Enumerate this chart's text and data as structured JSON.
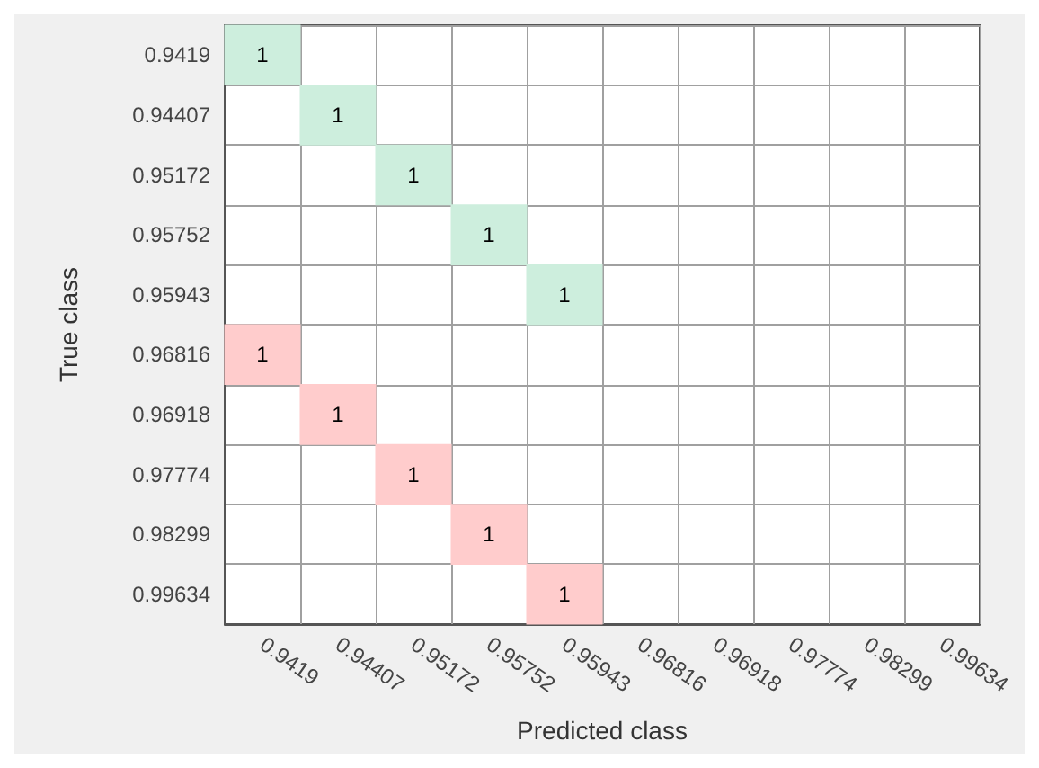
{
  "chart_data": {
    "type": "heatmap",
    "xlabel": "Predicted class",
    "ylabel": "True class",
    "categories": [
      "0.9419",
      "0.94407",
      "0.95172",
      "0.95752",
      "0.95943",
      "0.96816",
      "0.96918",
      "0.97774",
      "0.98299",
      "0.99634"
    ],
    "y_categories": [
      "0.9419",
      "0.94407",
      "0.95172",
      "0.95752",
      "0.95943",
      "0.96816",
      "0.96918",
      "0.97774",
      "0.98299",
      "0.99634"
    ],
    "cells": [
      [
        1,
        null,
        null,
        null,
        null,
        null,
        null,
        null,
        null,
        null
      ],
      [
        null,
        1,
        null,
        null,
        null,
        null,
        null,
        null,
        null,
        null
      ],
      [
        null,
        null,
        1,
        null,
        null,
        null,
        null,
        null,
        null,
        null
      ],
      [
        null,
        null,
        null,
        1,
        null,
        null,
        null,
        null,
        null,
        null
      ],
      [
        null,
        null,
        null,
        null,
        1,
        null,
        null,
        null,
        null,
        null
      ],
      [
        1,
        null,
        null,
        null,
        null,
        null,
        null,
        null,
        null,
        null
      ],
      [
        null,
        1,
        null,
        null,
        null,
        null,
        null,
        null,
        null,
        null
      ],
      [
        null,
        null,
        1,
        null,
        null,
        null,
        null,
        null,
        null,
        null
      ],
      [
        null,
        null,
        null,
        1,
        null,
        null,
        null,
        null,
        null,
        null
      ],
      [
        null,
        null,
        null,
        null,
        1,
        null,
        null,
        null,
        null,
        null
      ]
    ],
    "grid": true,
    "data_labels": true
  }
}
